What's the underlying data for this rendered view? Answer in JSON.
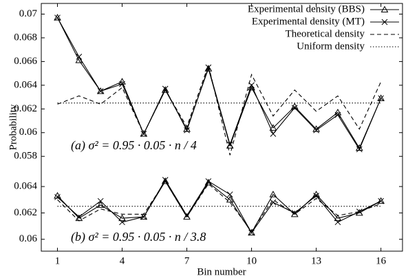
{
  "chart_data": [
    {
      "type": "line",
      "ylabel": "Probability",
      "annotation": "(a) σ² = 0.95 · 0.05 · n / 4",
      "x": [
        1,
        2,
        3,
        4,
        5,
        6,
        7,
        8,
        9,
        10,
        11,
        12,
        13,
        14,
        15,
        16
      ],
      "xlim": [
        0.25,
        17
      ],
      "ylim": [
        0.0572,
        0.0709
      ],
      "yticks": [
        0.058,
        0.06,
        0.062,
        0.064,
        0.066,
        0.068,
        0.07
      ],
      "legend": "upper right",
      "series": [
        {
          "name": "Experimental density (BBS)",
          "color": "#000000",
          "line_style": "solid",
          "marker": "triangle",
          "values": [
            0.0697,
            0.0661,
            0.0635,
            0.0643,
            0.0599,
            0.0636,
            0.0603,
            0.0654,
            0.0589,
            0.0638,
            0.0604,
            0.0622,
            0.0603,
            0.0617,
            0.0587,
            0.0629
          ]
        },
        {
          "name": "Experimental density (MT)",
          "color": "#000000",
          "line_style": "solid",
          "marker": "x",
          "values": [
            0.0697,
            0.0664,
            0.0635,
            0.0641,
            0.0599,
            0.0637,
            0.0602,
            0.0655,
            0.059,
            0.064,
            0.0599,
            0.0621,
            0.0602,
            0.0615,
            0.0586,
            0.0629
          ]
        },
        {
          "name": "Theoretical density",
          "color": "#000000",
          "line_style": "dashed",
          "marker": "none",
          "values": [
            0.0624,
            0.0631,
            0.0624,
            0.0638,
            0.0599,
            0.0636,
            0.0605,
            0.0657,
            0.0581,
            0.0649,
            0.0614,
            0.0636,
            0.0618,
            0.0631,
            0.0603,
            0.0643
          ]
        },
        {
          "name": "Uniform density",
          "color": "#000000",
          "line_style": "dotted",
          "marker": "none",
          "values": [
            0.0625,
            0.0625,
            0.0625,
            0.0625,
            0.0625,
            0.0625,
            0.0625,
            0.0625,
            0.0625,
            0.0625,
            0.0625,
            0.0625,
            0.0625,
            0.0625,
            0.0625,
            0.0625
          ]
        }
      ]
    },
    {
      "type": "line",
      "xlabel": "Bin number",
      "annotation": "(b) σ² = 0.95 · 0.05 · n / 3.8",
      "x": [
        1,
        2,
        3,
        4,
        5,
        6,
        7,
        8,
        9,
        10,
        11,
        12,
        13,
        14,
        15,
        16
      ],
      "xlim": [
        0.25,
        17
      ],
      "xticks": [
        1,
        4,
        7,
        10,
        13,
        16
      ],
      "ylim": [
        0.0591,
        0.0651
      ],
      "yticks": [
        0.06,
        0.062,
        0.064
      ],
      "series": [
        {
          "color": "#000000",
          "line_style": "solid",
          "marker": "triangle",
          "values": [
            0.0633,
            0.0616,
            0.0626,
            0.0616,
            0.0617,
            0.0644,
            0.0617,
            0.0643,
            0.063,
            0.0605,
            0.0634,
            0.0619,
            0.0634,
            0.0616,
            0.062,
            0.0629
          ]
        },
        {
          "color": "#000000",
          "line_style": "solid",
          "marker": "x",
          "values": [
            0.0632,
            0.0617,
            0.0629,
            0.0613,
            0.0617,
            0.0645,
            0.0618,
            0.0644,
            0.0634,
            0.0605,
            0.0628,
            0.062,
            0.0633,
            0.0613,
            0.0621,
            0.0629
          ]
        },
        {
          "color": "#000000",
          "line_style": "dashed",
          "marker": "none",
          "values": [
            0.063,
            0.0614,
            0.0623,
            0.0619,
            0.0619,
            0.0644,
            0.0617,
            0.0642,
            0.0628,
            0.0606,
            0.063,
            0.0619,
            0.0631,
            0.0618,
            0.0621,
            0.0627
          ]
        },
        {
          "color": "#000000",
          "line_style": "dotted",
          "marker": "none",
          "values": [
            0.0625,
            0.0625,
            0.0625,
            0.0625,
            0.0625,
            0.0625,
            0.0625,
            0.0625,
            0.0625,
            0.0625,
            0.0625,
            0.0625,
            0.0625,
            0.0625,
            0.0625,
            0.0625
          ]
        }
      ]
    }
  ]
}
